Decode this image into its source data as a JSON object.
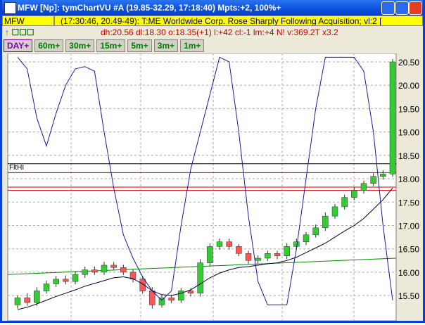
{
  "window": {
    "title": "MFW [Np]: tymChartVU #A (19.85-32.29, 17:18:40) Mpts:+2, 100%+"
  },
  "symbol": "MFW",
  "headline": "(17:30:46, 20.49-49): T:ME Worldwide Corp. Rose Sharply Following Acquisition; vl:2 [",
  "stats": "dh:20.56  dl:18.30  o:18.35(+1)  l:+42  cl:-1  lm:+4  N!  v:369.2T  x3.2",
  "intervals": [
    "DAY+",
    "60m+",
    "30m+",
    "15m+",
    "5m+",
    "3m+",
    "1m+"
  ],
  "chart": {
    "type": "candlestick",
    "ylim": [
      14.93,
      20.65
    ],
    "yticks": [
      {
        "value": 15.5,
        "label": "15.50"
      },
      {
        "value": 16,
        "label": "16.00"
      },
      {
        "value": 16.5,
        "label": "16.50"
      },
      {
        "value": 17,
        "label": "17.00"
      },
      {
        "value": 17.5,
        "label": "17.50"
      },
      {
        "value": 18,
        "label": "18.00"
      },
      {
        "value": 18.5,
        "label": "18.50"
      },
      {
        "value": 19,
        "label": "19.00"
      },
      {
        "value": 19.5,
        "label": "19.50"
      },
      {
        "value": 20,
        "label": "20.00"
      },
      {
        "value": 20.5,
        "label": "20.50"
      }
    ],
    "grid": true,
    "up_color": "#33cc33",
    "down_color": "#ff5555",
    "open": [
      15.3,
      15.45,
      15.35,
      15.6,
      15.75,
      15.85,
      15.8,
      15.95,
      16.05,
      16.0,
      16.15,
      16.1,
      16.0,
      15.85,
      15.6,
      15.3,
      15.45,
      15.4,
      15.6,
      15.55,
      16.2,
      16.55,
      16.65,
      16.55,
      16.4,
      16.25,
      16.3,
      16.4,
      16.35,
      16.55,
      16.65,
      16.8,
      16.95,
      17.2,
      17.4,
      17.6,
      17.75,
      17.9,
      18.05,
      18.1
    ],
    "high": [
      15.5,
      15.55,
      15.68,
      15.82,
      15.92,
      15.93,
      16.02,
      16.12,
      16.12,
      16.22,
      16.22,
      16.16,
      16.06,
      15.92,
      15.68,
      15.52,
      15.52,
      15.66,
      15.66,
      16.28,
      16.62,
      16.72,
      16.72,
      16.6,
      16.46,
      16.36,
      16.46,
      16.46,
      16.62,
      16.72,
      16.86,
      17.02,
      17.28,
      17.46,
      17.66,
      17.82,
      17.96,
      18.12,
      18.18,
      20.56
    ],
    "low": [
      15.22,
      15.28,
      15.28,
      15.54,
      15.68,
      15.74,
      15.74,
      15.88,
      15.94,
      15.94,
      16.04,
      15.94,
      15.78,
      15.54,
      15.22,
      15.24,
      15.34,
      15.34,
      15.48,
      15.48,
      16.12,
      16.48,
      16.48,
      16.34,
      16.18,
      16.18,
      16.24,
      16.28,
      16.28,
      16.48,
      16.58,
      16.74,
      16.88,
      17.14,
      17.34,
      17.54,
      17.68,
      17.84,
      17.98,
      18.04
    ],
    "close": [
      15.45,
      15.35,
      15.6,
      15.75,
      15.85,
      15.8,
      15.95,
      16.05,
      16.0,
      16.15,
      16.1,
      16.0,
      15.85,
      15.6,
      15.3,
      15.45,
      15.4,
      15.6,
      15.55,
      16.2,
      16.55,
      16.65,
      16.55,
      16.4,
      16.25,
      16.3,
      16.4,
      16.35,
      16.55,
      16.65,
      16.8,
      16.95,
      17.2,
      17.4,
      17.6,
      17.75,
      17.9,
      18.05,
      18.1,
      20.5
    ],
    "series": [
      {
        "color": "#000033",
        "values": [
          15.2,
          15.25,
          15.32,
          15.4,
          15.48,
          15.55,
          15.62,
          15.7,
          15.76,
          15.82,
          15.88,
          15.9,
          15.86,
          15.75,
          15.6,
          15.52,
          15.5,
          15.55,
          15.62,
          15.75,
          15.88,
          15.98,
          16.05,
          16.1,
          16.12,
          16.15,
          16.18,
          16.2,
          16.25,
          16.32,
          16.42,
          16.52,
          16.62,
          16.75,
          16.88,
          17.0,
          17.15,
          17.35,
          17.55,
          17.8
        ]
      },
      {
        "color": "#1a1a99",
        "values": [
          20.6,
          20.35,
          19.3,
          18.7,
          19.4,
          20.0,
          20.35,
          20.4,
          20.3,
          19.0,
          17.8,
          16.8,
          16.3,
          15.9,
          15.6,
          15.4,
          15.6,
          17.0,
          18.2,
          19.0,
          19.8,
          20.6,
          20.5,
          19.0,
          17.2,
          15.8,
          15.3,
          15.3,
          15.3,
          16.5,
          18.0,
          19.5,
          20.6,
          20.6,
          20.6,
          20.6,
          20.3,
          19.0,
          17.0,
          15.4
        ]
      }
    ],
    "levels": [
      {
        "value": 18.32,
        "color": "#000000"
      },
      {
        "value": 18.13,
        "color": "#cc0000"
      },
      {
        "value": 17.82,
        "color": "#cc0000"
      },
      {
        "value": 17.75,
        "color": "#cc0000"
      }
    ],
    "level_label": "FltHI",
    "trendline": {
      "color": "#008800",
      "values": [
        15.95,
        16.3
      ]
    }
  }
}
